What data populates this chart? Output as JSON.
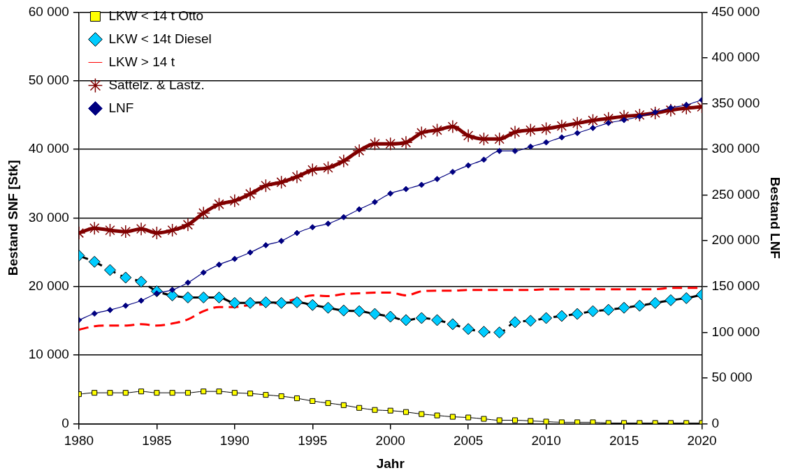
{
  "chart_data": {
    "type": "line",
    "xlabel": "Jahr",
    "ylabel": "Bestand SNF [Stk]",
    "y2label": "Bestand LNF",
    "x": [
      1980,
      1981,
      1982,
      1983,
      1984,
      1985,
      1986,
      1987,
      1988,
      1989,
      1990,
      1991,
      1992,
      1993,
      1994,
      1995,
      1996,
      1997,
      1998,
      1999,
      2000,
      2001,
      2002,
      2003,
      2004,
      2005,
      2006,
      2007,
      2008,
      2009,
      2010,
      2011,
      2012,
      2013,
      2014,
      2015,
      2016,
      2017,
      2018,
      2019,
      2020
    ],
    "xlim": [
      1980,
      2020
    ],
    "xticks": [
      1980,
      1985,
      1990,
      1995,
      2000,
      2005,
      2010,
      2015,
      2020
    ],
    "ylim": [
      0,
      60000
    ],
    "yticks": [
      0,
      {
        "value": 10000,
        "label": "10 000"
      },
      {
        "value": 20000,
        "label": "20 000"
      },
      {
        "value": 30000,
        "label": "30 000"
      },
      {
        "value": 40000,
        "label": "40 000"
      },
      {
        "value": 50000,
        "label": "50 000"
      },
      {
        "value": 60000,
        "label": "60 000"
      }
    ],
    "y2lim": [
      0,
      450000
    ],
    "y2ticks": [
      0,
      {
        "value": 50000,
        "label": "50 000"
      },
      {
        "value": 100000,
        "label": "100 000"
      },
      {
        "value": 150000,
        "label": "150 000"
      },
      {
        "value": 200000,
        "label": "200 000"
      },
      {
        "value": 250000,
        "label": "250 000"
      },
      {
        "value": 300000,
        "label": "300 000"
      },
      {
        "value": 350000,
        "label": "350 000"
      },
      {
        "value": 400000,
        "label": "400 000"
      },
      {
        "value": 450000,
        "label": "450 000"
      }
    ],
    "grid": "y",
    "legend": "top left",
    "series": [
      {
        "name": "LKW < 14 t Otto",
        "color": "#ffff00",
        "marker": "square",
        "line_style": "solid",
        "values": [
          4300,
          4500,
          4500,
          4500,
          4700,
          4500,
          4500,
          4500,
          4700,
          4700,
          4500,
          4400,
          4200,
          4000,
          3700,
          3300,
          3000,
          2700,
          2300,
          2000,
          1900,
          1700,
          1400,
          1200,
          1000,
          900,
          700,
          500,
          500,
          400,
          300,
          200,
          200,
          200,
          100,
          100,
          100,
          100,
          100,
          100,
          100
        ]
      },
      {
        "name": "LKW < 14t Diesel",
        "color": "#00ccff",
        "marker": "diamond",
        "line_style": "dashed",
        "values": [
          24500,
          23600,
          22400,
          21300,
          20700,
          19300,
          18700,
          18400,
          18400,
          18400,
          17600,
          17600,
          17700,
          17600,
          17700,
          17300,
          16900,
          16500,
          16400,
          16000,
          15600,
          15100,
          15400,
          15100,
          14500,
          13800,
          13400,
          13300,
          14800,
          15000,
          15400,
          15700,
          16000,
          16400,
          16600,
          16900,
          17200,
          17600,
          18000,
          18300,
          18800
        ]
      },
      {
        "name": "LKW > 14 t",
        "color": "#ff0000",
        "marker": "none",
        "line_style": "dashed",
        "values": [
          13700,
          14200,
          14300,
          14300,
          14500,
          14300,
          14600,
          15200,
          16400,
          17000,
          17000,
          17300,
          17400,
          17700,
          18200,
          18700,
          18600,
          18900,
          19000,
          19100,
          19100,
          18700,
          19300,
          19400,
          19400,
          19500,
          19500,
          19500,
          19500,
          19500,
          19600,
          19600,
          19600,
          19600,
          19600,
          19600,
          19600,
          19600,
          19800,
          19800,
          19800
        ]
      },
      {
        "name": "Sattelz. & Lastz.",
        "color": "#800000",
        "marker": "cross",
        "line_style": "solid",
        "values": [
          27800,
          28500,
          28200,
          28000,
          28400,
          27800,
          28200,
          29000,
          30700,
          32000,
          32500,
          33500,
          34700,
          35200,
          36000,
          37000,
          37300,
          38300,
          39800,
          40800,
          40800,
          41000,
          42400,
          42800,
          43300,
          42000,
          41500,
          41500,
          42500,
          42800,
          43000,
          43400,
          43800,
          44200,
          44500,
          44800,
          45000,
          45300,
          45700,
          46000,
          46200
        ]
      },
      {
        "name": "LNF",
        "color": "#000080",
        "marker": "diamond",
        "line_style": "solid",
        "axis": "y2",
        "values": [
          113300,
          120400,
          124300,
          129000,
          134500,
          142400,
          146300,
          154200,
          165200,
          173900,
          180200,
          187200,
          195100,
          199800,
          208500,
          214800,
          218700,
          225800,
          234400,
          242300,
          251700,
          256500,
          261200,
          267500,
          275300,
          282400,
          288700,
          298200,
          298200,
          302900,
          307600,
          313100,
          317800,
          323300,
          328800,
          332000,
          335900,
          340600,
          345400,
          348500,
          354000
        ]
      }
    ]
  }
}
